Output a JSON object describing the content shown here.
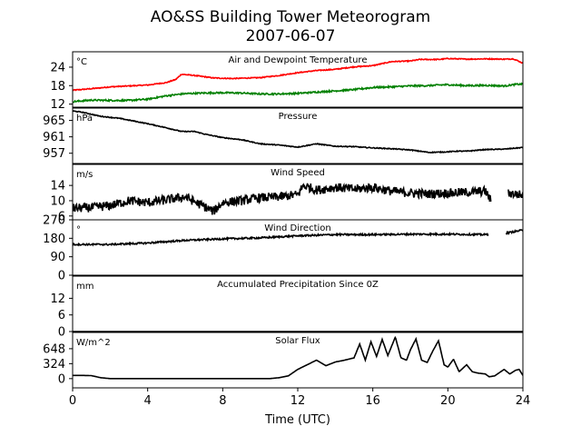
{
  "chart_data": {
    "type": "line",
    "title": "AO&SS Building Tower Meteorogram",
    "subtitle": "2007-06-07",
    "xlabel": "Time (UTC)",
    "xlim": [
      0,
      24
    ],
    "x_ticks": [
      "0",
      "4",
      "8",
      "12",
      "16",
      "20",
      "24"
    ],
    "panels": [
      {
        "title": "Air and Dewpoint Temperature",
        "unit": "°C",
        "ylim": [
          11,
          29
        ],
        "y_ticks": [
          "12",
          "18",
          "24"
        ],
        "y_tick_values": [
          12,
          18,
          24
        ],
        "series": [
          {
            "color": "#ff0000",
            "noise": 0.15,
            "points": [
              [
                0,
                16.5
              ],
              [
                1,
                17
              ],
              [
                2,
                17.6
              ],
              [
                3,
                17.9
              ],
              [
                4,
                18.2
              ],
              [
                5,
                19
              ],
              [
                5.5,
                20
              ],
              [
                5.8,
                21.7
              ],
              [
                6.5,
                21.3
              ],
              [
                7.5,
                20.5
              ],
              [
                8.5,
                20.3
              ],
              [
                10,
                20.6
              ],
              [
                11,
                21.3
              ],
              [
                12,
                22.2
              ],
              [
                13,
                22.9
              ],
              [
                14,
                23.3
              ],
              [
                15,
                24.1
              ],
              [
                16,
                24.5
              ],
              [
                17,
                25.8
              ],
              [
                18,
                26
              ],
              [
                18.5,
                26.5
              ],
              [
                19.5,
                26.5
              ],
              [
                20,
                26.8
              ],
              [
                21,
                26.6
              ],
              [
                22,
                26.7
              ],
              [
                23,
                26.6
              ],
              [
                23.5,
                26.7
              ],
              [
                24,
                25.3
              ]
            ]
          },
          {
            "color": "#008000",
            "noise": 0.25,
            "points": [
              [
                0,
                12.8
              ],
              [
                1,
                13.3
              ],
              [
                2,
                13.2
              ],
              [
                3,
                13.2
              ],
              [
                4,
                13.6
              ],
              [
                5,
                14.7
              ],
              [
                6,
                15.4
              ],
              [
                7,
                15.6
              ],
              [
                8,
                15.7
              ],
              [
                9,
                15.6
              ],
              [
                10,
                15.3
              ],
              [
                11,
                15.3
              ],
              [
                12,
                15.5
              ],
              [
                13,
                15.9
              ],
              [
                14,
                16.3
              ],
              [
                15,
                16.7
              ],
              [
                16,
                17.4
              ],
              [
                17,
                17.6
              ],
              [
                18,
                17.9
              ],
              [
                19,
                18
              ],
              [
                19.5,
                18.2
              ],
              [
                20,
                18.3
              ],
              [
                21,
                18
              ],
              [
                22,
                18.1
              ],
              [
                23,
                17.9
              ],
              [
                23.6,
                18.4
              ],
              [
                24,
                18.5
              ]
            ]
          }
        ]
      },
      {
        "title": "Pressure",
        "unit": "hPa",
        "ylim": [
          954.5,
          968
        ],
        "y_ticks": [
          "957",
          "961",
          "965"
        ],
        "y_tick_values": [
          957,
          961,
          965
        ],
        "series": [
          {
            "color": "#000000",
            "noise": 0.1,
            "points": [
              [
                0,
                967.3
              ],
              [
                0.5,
                967
              ],
              [
                1.5,
                966
              ],
              [
                2.5,
                965.5
              ],
              [
                4,
                964.2
              ],
              [
                5,
                963.2
              ],
              [
                5.8,
                962.3
              ],
              [
                6.5,
                962.3
              ],
              [
                7,
                961.7
              ],
              [
                8,
                960.8
              ],
              [
                9,
                960.3
              ],
              [
                10,
                959.3
              ],
              [
                11,
                959
              ],
              [
                12,
                958.5
              ],
              [
                13,
                959.3
              ],
              [
                14,
                958.7
              ],
              [
                15,
                958.6
              ],
              [
                16,
                958.3
              ],
              [
                17,
                958.1
              ],
              [
                18,
                957.8
              ],
              [
                19,
                957.2
              ],
              [
                19.8,
                957.3
              ],
              [
                20.5,
                957.5
              ],
              [
                21,
                957.5
              ],
              [
                22,
                957.9
              ],
              [
                23,
                958
              ],
              [
                24,
                958.4
              ]
            ]
          }
        ]
      },
      {
        "title": "Wind Speed",
        "unit": "m/s",
        "ylim": [
          5,
          19.5
        ],
        "y_ticks": [
          "6",
          "10",
          "14"
        ],
        "y_tick_values": [
          6,
          10,
          14
        ],
        "series": [
          {
            "color": "#000000",
            "noise": 1.2,
            "gaps": [
              [
                22.3,
                23.2
              ]
            ],
            "points": [
              [
                0,
                8
              ],
              [
                1,
                8.2
              ],
              [
                2,
                8.7
              ],
              [
                3,
                10
              ],
              [
                4,
                9.5
              ],
              [
                5,
                10.2
              ],
              [
                6,
                11
              ],
              [
                7,
                8.5
              ],
              [
                7.5,
                7.2
              ],
              [
                8,
                9.5
              ],
              [
                9,
                10
              ],
              [
                10,
                10.8
              ],
              [
                11,
                11
              ],
              [
                12,
                11.6
              ],
              [
                12.3,
                14
              ],
              [
                13,
                12.8
              ],
              [
                14,
                13.5
              ],
              [
                15,
                13
              ],
              [
                16,
                13.5
              ],
              [
                17,
                12.5
              ],
              [
                18,
                12
              ],
              [
                19,
                11.8
              ],
              [
                20,
                12
              ],
              [
                21,
                12.2
              ],
              [
                22,
                12.5
              ],
              [
                22.3,
                10
              ],
              [
                23.2,
                12
              ],
              [
                24,
                11.5
              ]
            ]
          }
        ]
      },
      {
        "title": "Wind Direction",
        "unit": "°",
        "ylim": [
          0,
          270
        ],
        "y_ticks": [
          "0",
          "90",
          "180",
          "270"
        ],
        "y_tick_values": [
          0,
          90,
          180,
          270
        ],
        "series": [
          {
            "color": "#000000",
            "noise": 4,
            "gaps": [
              [
                22.2,
                23.1
              ]
            ],
            "points": [
              [
                0,
                150
              ],
              [
                2,
                150
              ],
              [
                4,
                157
              ],
              [
                6,
                170
              ],
              [
                8,
                177
              ],
              [
                10,
                182
              ],
              [
                12,
                192
              ],
              [
                14,
                198
              ],
              [
                16,
                198
              ],
              [
                18,
                200
              ],
              [
                20,
                200
              ],
              [
                22,
                198
              ],
              [
                23.1,
                205
              ],
              [
                24,
                220
              ]
            ]
          }
        ]
      },
      {
        "title": "Accumulated Precipitation Since 0Z",
        "unit": "mm",
        "ylim": [
          0,
          20
        ],
        "y_ticks": [
          "0",
          "6",
          "12"
        ],
        "y_tick_values": [
          0,
          6,
          12
        ],
        "series": [
          {
            "color": "#000000",
            "noise": 0,
            "points": [
              [
                0,
                0
              ],
              [
                24,
                0
              ]
            ]
          }
        ]
      },
      {
        "title": "Solar Flux",
        "unit": "W/m^2",
        "ylim": [
          -200,
          1000
        ],
        "y_ticks": [
          "0",
          "324",
          "648"
        ],
        "y_tick_values": [
          0,
          324,
          648
        ],
        "series": [
          {
            "color": "#000000",
            "noise": 0,
            "points": [
              [
                0,
                70
              ],
              [
                0.5,
                70
              ],
              [
                1,
                65
              ],
              [
                1.5,
                20
              ],
              [
                2,
                0
              ],
              [
                5,
                0
              ],
              [
                9,
                0
              ],
              [
                10.5,
                0
              ],
              [
                11,
                20
              ],
              [
                11.5,
                60
              ],
              [
                12,
                200
              ],
              [
                12.5,
                300
              ],
              [
                13,
                400
              ],
              [
                13.5,
                280
              ],
              [
                14,
                360
              ],
              [
                14.5,
                400
              ],
              [
                15,
                450
              ],
              [
                15.3,
                750
              ],
              [
                15.6,
                400
              ],
              [
                15.9,
                800
              ],
              [
                16.2,
                480
              ],
              [
                16.5,
                850
              ],
              [
                16.8,
                500
              ],
              [
                17.2,
                900
              ],
              [
                17.5,
                450
              ],
              [
                17.8,
                400
              ],
              [
                18,
                620
              ],
              [
                18.3,
                860
              ],
              [
                18.6,
                400
              ],
              [
                18.9,
                350
              ],
              [
                19.2,
                600
              ],
              [
                19.5,
                820
              ],
              [
                19.8,
                300
              ],
              [
                20,
                250
              ],
              [
                20.3,
                420
              ],
              [
                20.6,
                150
              ],
              [
                21,
                300
              ],
              [
                21.3,
                150
              ],
              [
                21.6,
                120
              ],
              [
                22,
                100
              ],
              [
                22.2,
                40
              ],
              [
                22.5,
                60
              ],
              [
                23,
                200
              ],
              [
                23.3,
                100
              ],
              [
                23.6,
                180
              ],
              [
                23.8,
                200
              ],
              [
                24,
                70
              ]
            ]
          }
        ]
      }
    ]
  }
}
